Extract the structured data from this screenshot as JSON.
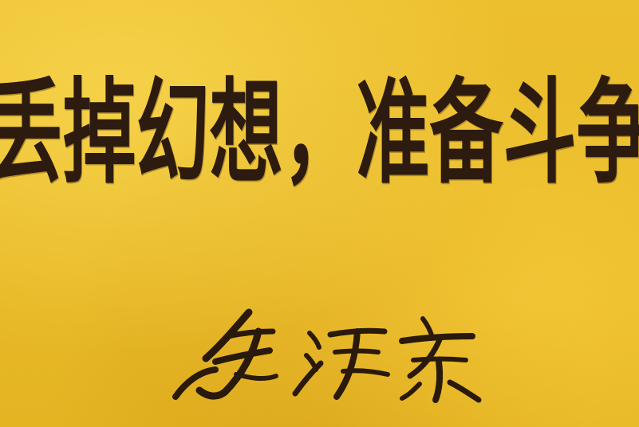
{
  "slogan": "丢掉幻想，准备斗争",
  "signature": "毛泽东",
  "colors": {
    "background": "#e8b92a",
    "ink": "#2c1b0e"
  }
}
